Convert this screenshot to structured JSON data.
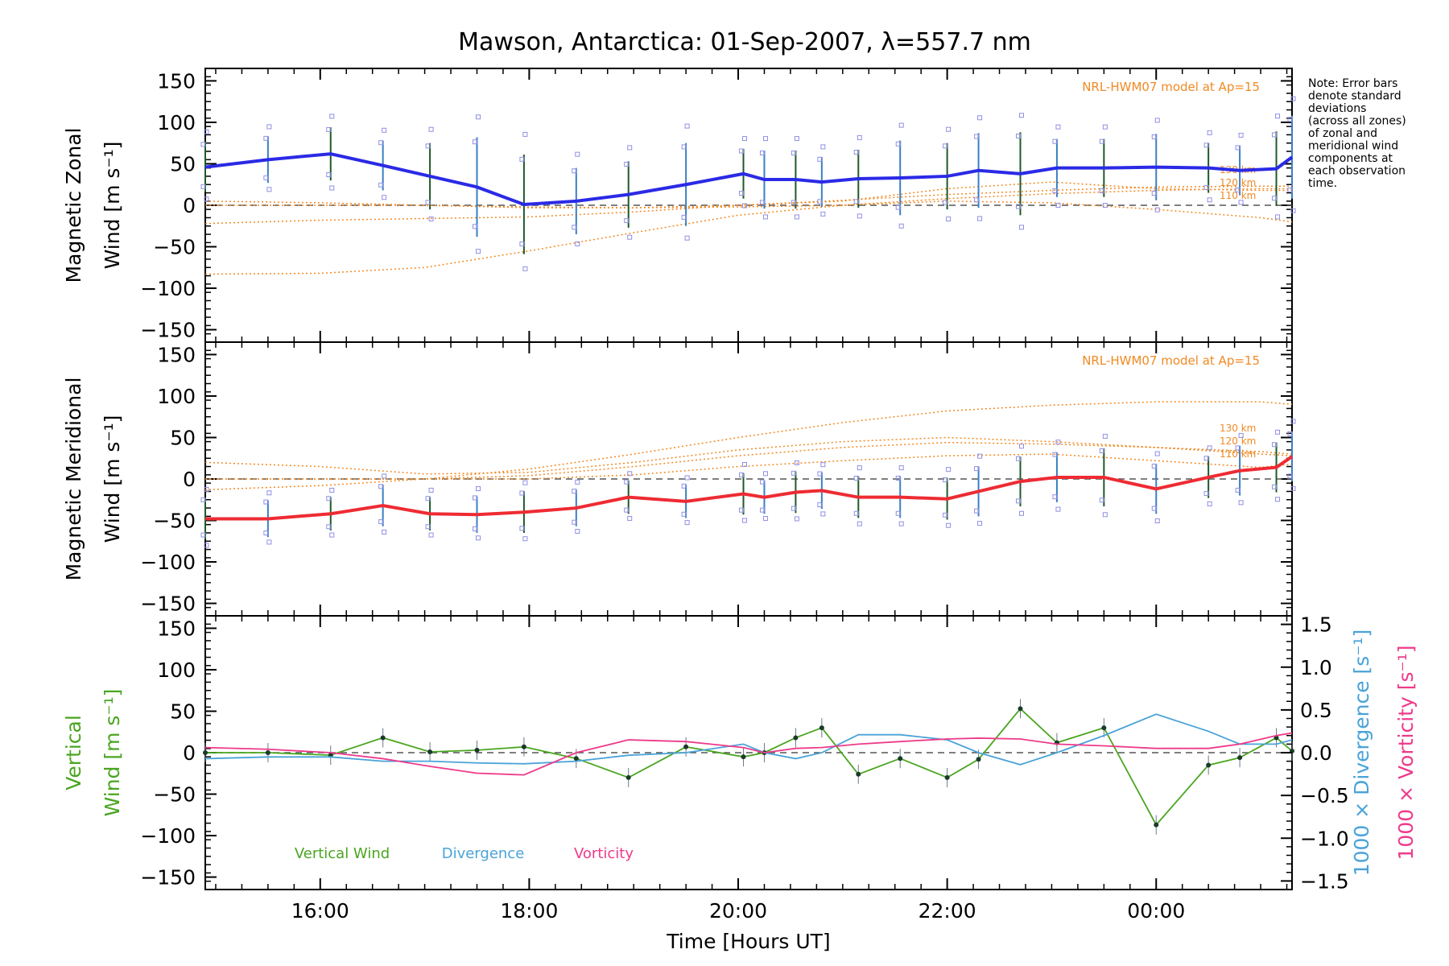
{
  "title": "Mawson, Antarctica: 01-Sep-2007, λ=557.7 nm",
  "note": [
    "Note: Error bars",
    "denote standard",
    "deviations",
    "(across all zones)",
    "of zonal and",
    "meridional wind",
    "components at",
    "each observation",
    "time."
  ],
  "colors": {
    "zonal": "#2a2ae6",
    "meridional": "#ee2b33",
    "vertical": "#4aa520",
    "divergence": "#4aa3d8",
    "vorticity": "#ee3a8a",
    "model": "#f08a24",
    "samples": "#8f8fe6",
    "errbar_dark": "#1f5a2a",
    "errbar_blue": "#3a7fc4",
    "axis": "#000000"
  },
  "chart_data": [
    {
      "type": "line",
      "panel": "zonal",
      "ylabel_line1": "Magnetic Zonal",
      "ylabel_line2": "Wind [m s⁻¹]",
      "ylim": [
        -165,
        165
      ],
      "yticks": [
        -150,
        -100,
        -50,
        0,
        50,
        100,
        150
      ],
      "model_label": "NRL-HWM07 model at Ap=15",
      "model_levels": [
        "130 km",
        "120 km",
        "110 km"
      ],
      "series": [
        {
          "name": "Magnetic Zonal Wind",
          "x": [
            14.9,
            15.5,
            16.1,
            16.6,
            17.05,
            17.5,
            17.95,
            18.45,
            18.95,
            19.5,
            20.05,
            20.25,
            20.55,
            20.8,
            21.15,
            21.55,
            22.0,
            22.3,
            22.7,
            23.05,
            23.5,
            24.0,
            24.5,
            24.8,
            25.15,
            25.3
          ],
          "y": [
            46,
            55,
            62,
            48,
            35,
            22,
            1,
            5,
            13,
            25,
            38,
            31,
            31,
            28,
            32,
            33,
            35,
            42,
            38,
            45,
            45,
            46,
            45,
            42,
            44,
            58
          ]
        }
      ],
      "errors": [
        30,
        28,
        32,
        30,
        40,
        60,
        60,
        40,
        40,
        50,
        30,
        35,
        35,
        30,
        35,
        45,
        40,
        45,
        50,
        35,
        35,
        40,
        30,
        30,
        45,
        50
      ],
      "model_curves": [
        {
          "name": "model-1",
          "x": [
            14.9,
            16.0,
            17.0,
            18.0,
            19.0,
            20.0,
            21.0,
            22.0,
            23.0,
            24.0,
            25.0,
            25.3
          ],
          "y": [
            -83,
            -82,
            -75,
            -55,
            -33,
            -12,
            0,
            8,
            14,
            18,
            20,
            20
          ]
        },
        {
          "name": "model-2",
          "x": [
            14.9,
            16.0,
            17.0,
            18.0,
            19.0,
            20.0,
            21.0,
            22.0,
            23.0,
            24.0,
            25.0,
            25.3
          ],
          "y": [
            -22,
            -18,
            -16,
            -14,
            -8,
            0,
            6,
            13,
            18,
            22,
            23,
            23
          ]
        },
        {
          "name": "model-3",
          "x": [
            14.9,
            16.0,
            17.0,
            18.0,
            19.0,
            20.0,
            21.0,
            22.0,
            23.0,
            24.0,
            25.0,
            25.3
          ],
          "y": [
            5,
            3,
            0,
            -2,
            -3,
            -2,
            0,
            5,
            3,
            -5,
            -15,
            -20
          ]
        },
        {
          "name": "model-4",
          "x": [
            14.9,
            16.0,
            17.0,
            18.0,
            19.0,
            20.0,
            21.0,
            22.0,
            23.0,
            24.0,
            25.0,
            25.3
          ],
          "y": [
            0,
            0,
            0,
            -3,
            -3,
            0,
            5,
            20,
            28,
            20,
            18,
            18
          ]
        }
      ],
      "zero_line": true
    },
    {
      "type": "line",
      "panel": "meridional",
      "ylabel_line1": "Magnetic Meridional",
      "ylabel_line2": "Wind [m s⁻¹]",
      "ylim": [
        -165,
        165
      ],
      "yticks": [
        -150,
        -100,
        -50,
        0,
        50,
        100,
        150
      ],
      "model_label": "NRL-HWM07 model at Ap=15",
      "model_levels": [
        "130 km",
        "120 km",
        "110 km"
      ],
      "series": [
        {
          "name": "Magnetic Meridional Wind",
          "x": [
            14.9,
            15.5,
            16.1,
            16.6,
            17.05,
            17.5,
            17.95,
            18.45,
            18.95,
            19.5,
            20.05,
            20.25,
            20.55,
            20.8,
            21.15,
            21.55,
            22.0,
            22.3,
            22.7,
            23.05,
            23.5,
            24.0,
            24.5,
            24.8,
            25.15,
            25.3
          ],
          "y": [
            -48,
            -48,
            -42,
            -32,
            -42,
            -43,
            -40,
            -35,
            -22,
            -27,
            -18,
            -22,
            -16,
            -14,
            -22,
            -22,
            -24,
            -15,
            -3,
            2,
            2,
            -12,
            2,
            10,
            14,
            27
          ]
        }
      ],
      "errors": [
        25,
        22,
        20,
        25,
        20,
        22,
        25,
        22,
        20,
        20,
        25,
        20,
        25,
        22,
        25,
        25,
        25,
        30,
        30,
        30,
        35,
        30,
        25,
        30,
        30,
        30
      ],
      "model_curves": [
        {
          "name": "model-1",
          "x": [
            14.9,
            16.0,
            17.0,
            18.0,
            19.0,
            20.0,
            21.0,
            22.0,
            23.0,
            24.0,
            25.0,
            25.3
          ],
          "y": [
            -13,
            -8,
            0,
            12,
            30,
            50,
            68,
            82,
            89,
            93,
            93,
            90
          ]
        },
        {
          "name": "model-2",
          "x": [
            14.9,
            16.0,
            17.0,
            18.0,
            19.0,
            20.0,
            21.0,
            22.0,
            23.0,
            24.0,
            25.0,
            25.3
          ],
          "y": [
            0,
            0,
            0,
            4,
            15,
            28,
            38,
            44,
            42,
            38,
            33,
            30
          ]
        },
        {
          "name": "model-3",
          "x": [
            14.9,
            16.0,
            17.0,
            18.0,
            19.0,
            20.0,
            21.0,
            22.0,
            23.0,
            24.0,
            25.0,
            25.3
          ],
          "y": [
            20,
            15,
            6,
            8,
            20,
            35,
            45,
            50,
            45,
            38,
            30,
            28
          ]
        },
        {
          "name": "model-4",
          "x": [
            14.9,
            16.0,
            17.0,
            18.0,
            19.0,
            20.0,
            21.0,
            22.0,
            23.0,
            24.0,
            25.0,
            25.3
          ],
          "y": [
            0,
            0,
            0,
            0,
            5,
            15,
            22,
            28,
            30,
            22,
            14,
            18
          ]
        }
      ],
      "zero_line": true
    },
    {
      "type": "line",
      "panel": "vertical",
      "ylabel_line1": "Vertical",
      "ylabel_line2": "Wind [m s⁻¹]",
      "y2label_line1": "1000 × Divergence [s⁻¹]",
      "y2label_line2": "1000 × Vorticity [s⁻¹]",
      "ylim": [
        -165,
        165
      ],
      "yticks": [
        -150,
        -100,
        -50,
        0,
        50,
        100,
        150
      ],
      "y2lim": [
        -1.6,
        1.6
      ],
      "y2ticks": [
        -1.5,
        -1.0,
        -0.5,
        0.0,
        0.5,
        1.0,
        1.5
      ],
      "legend": [
        "Vertical Wind",
        "Divergence",
        "Vorticity"
      ],
      "series": [
        {
          "name": "Vertical Wind",
          "x": [
            14.9,
            15.5,
            16.1,
            16.6,
            17.05,
            17.5,
            17.95,
            18.45,
            18.95,
            19.5,
            20.05,
            20.25,
            20.55,
            20.8,
            21.15,
            21.55,
            22.0,
            22.3,
            22.7,
            23.05,
            23.5,
            24.0,
            24.5,
            24.8,
            25.15,
            25.3
          ],
          "y": [
            0,
            0,
            -3,
            18,
            1,
            3,
            7,
            -7,
            -30,
            7,
            -5,
            0,
            18,
            30,
            -26,
            -7,
            -30,
            -8,
            53,
            12,
            30,
            -87,
            -15,
            -6,
            18,
            2
          ]
        },
        {
          "name": "Divergence",
          "axis": "y2",
          "x": [
            14.9,
            15.5,
            16.1,
            16.6,
            17.05,
            17.5,
            17.95,
            18.45,
            18.95,
            19.5,
            20.05,
            20.25,
            20.55,
            20.8,
            21.15,
            21.55,
            22.0,
            22.3,
            22.7,
            23.05,
            23.5,
            24.0,
            24.5,
            24.8,
            25.15,
            25.3
          ],
          "y": [
            -0.07,
            -0.05,
            -0.05,
            -0.1,
            -0.1,
            -0.12,
            -0.13,
            -0.1,
            -0.03,
            0.0,
            0.1,
            0.0,
            -0.07,
            0.0,
            0.21,
            0.21,
            0.15,
            0.0,
            -0.14,
            0.0,
            0.2,
            0.45,
            0.25,
            0.1,
            0.1,
            0.15
          ]
        },
        {
          "name": "Vorticity",
          "axis": "y2",
          "x": [
            14.9,
            15.5,
            16.1,
            16.6,
            17.05,
            17.5,
            17.95,
            18.45,
            18.95,
            19.5,
            20.05,
            20.25,
            20.55,
            20.8,
            21.15,
            21.55,
            22.0,
            22.3,
            22.7,
            23.05,
            23.5,
            24.0,
            24.5,
            24.8,
            25.15,
            25.3
          ],
          "y": [
            0.06,
            0.04,
            0.0,
            -0.07,
            -0.16,
            -0.24,
            -0.26,
            0.0,
            0.15,
            0.13,
            0.06,
            0.0,
            0.05,
            0.06,
            0.1,
            0.13,
            0.16,
            0.17,
            0.16,
            0.1,
            0.08,
            0.05,
            0.05,
            0.1,
            0.2,
            0.23
          ]
        }
      ],
      "zero_line": true
    }
  ],
  "xaxis": {
    "label": "Time [Hours UT]",
    "xlim": [
      14.9,
      25.3
    ],
    "tick_values": [
      16,
      18,
      20,
      22,
      24
    ],
    "tick_labels": [
      "16:00",
      "18:00",
      "20:00",
      "22:00",
      "00:00"
    ]
  }
}
